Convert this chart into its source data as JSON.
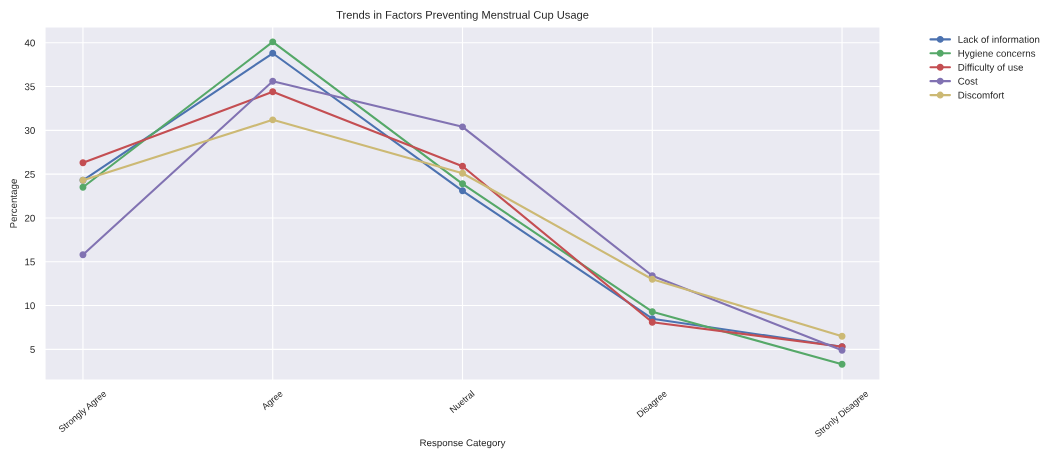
{
  "chart_data": {
    "type": "line",
    "title": "Trends in Factors Preventing Menstrual Cup Usage",
    "xlabel": "Response Category",
    "ylabel": "Percentage",
    "categories": [
      "Strongly Agree",
      "Agree",
      "Nuetral",
      "Disagree",
      "Stronly Disagree"
    ],
    "series": [
      {
        "name": "Lack of information",
        "color": "#4c72b0",
        "values": [
          24.3,
          38.8,
          23.1,
          8.5,
          5.3
        ]
      },
      {
        "name": "Hygiene concerns",
        "color": "#55a868",
        "values": [
          23.5,
          40.1,
          23.9,
          9.3,
          3.3
        ]
      },
      {
        "name": "Difficulty of use",
        "color": "#c44e52",
        "values": [
          26.3,
          34.4,
          25.9,
          8.1,
          5.3
        ]
      },
      {
        "name": "Cost",
        "color": "#8172b2",
        "values": [
          15.8,
          35.6,
          30.4,
          13.4,
          4.9
        ]
      },
      {
        "name": "Discomfort",
        "color": "#ccb974",
        "values": [
          24.3,
          31.2,
          25.1,
          13.0,
          6.5
        ]
      }
    ],
    "ylim": [
      1.5,
      41.8
    ],
    "yticks": [
      5,
      10,
      15,
      20,
      25,
      30,
      35,
      40
    ],
    "grid": true,
    "legend": "top right",
    "marker": "circle",
    "line_style": "solid"
  }
}
